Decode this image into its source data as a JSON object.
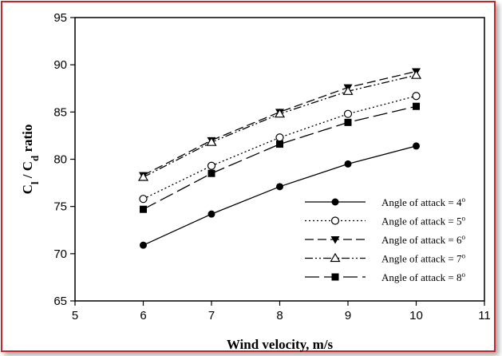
{
  "chart_data": {
    "type": "line",
    "xlabel": "Wind velocity, m/s",
    "ylabel": "C",
    "ylabel_sub1": "l",
    "ylabel_mid": " / C",
    "ylabel_sub2": "d",
    "ylabel_tail": " ratio",
    "xlim": [
      5,
      11
    ],
    "ylim": [
      65,
      95
    ],
    "xticks": [
      5,
      6,
      7,
      8,
      9,
      10,
      11
    ],
    "yticks": [
      65,
      70,
      75,
      80,
      85,
      90,
      95
    ],
    "x": [
      6,
      7,
      8,
      9,
      10
    ],
    "legend_position": "lower-right",
    "series": [
      {
        "name": "Angle of attack = 4",
        "sup": "o",
        "marker": "filled-circle",
        "dash": "none",
        "values": [
          70.9,
          74.2,
          77.1,
          79.5,
          81.4
        ]
      },
      {
        "name": "Angle of attack = 5",
        "sup": "o",
        "marker": "open-circle",
        "dash": "dotted",
        "values": [
          75.8,
          79.3,
          82.3,
          84.8,
          86.7
        ]
      },
      {
        "name": "Angle of attack = 6",
        "sup": "o",
        "marker": "filled-triangle-down",
        "dash": "dashed",
        "values": [
          78.3,
          82.0,
          85.0,
          87.6,
          89.3
        ]
      },
      {
        "name": "Angle of attack = 7",
        "sup": "o",
        "marker": "open-triangle-up",
        "dash": "dash-dot-dot",
        "values": [
          78.1,
          81.8,
          84.8,
          87.2,
          88.9
        ]
      },
      {
        "name": "Angle of attack = 8",
        "sup": "o",
        "marker": "filled-square",
        "dash": "long-dash",
        "values": [
          74.7,
          78.5,
          81.6,
          83.9,
          85.6
        ]
      }
    ]
  },
  "colors": {
    "frame_border": "#c0282d",
    "series_color": "#000000"
  }
}
